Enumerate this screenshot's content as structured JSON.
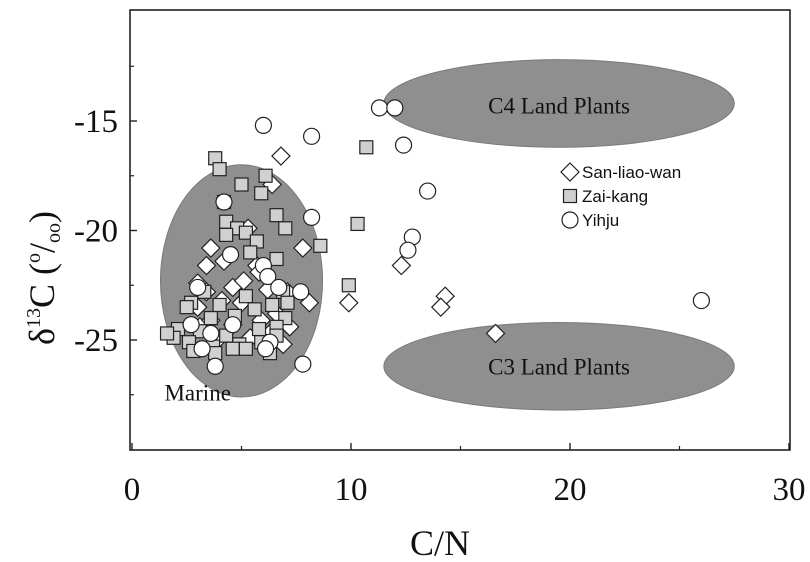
{
  "chart_data": {
    "type": "scatter",
    "title": "",
    "xlabel": "C/N",
    "ylabel": {
      "delta": "δ",
      "sup": "13",
      "main": "C (",
      "permil_sup": "o",
      "permil_sub": "oo",
      "close": ")"
    },
    "xlim": [
      0,
      30
    ],
    "ylim": [
      -30,
      -10
    ],
    "x_ticks": [
      0,
      10,
      20,
      30
    ],
    "y_ticks": [
      -15,
      -20,
      -25
    ],
    "x_tick_labels": [
      "0",
      "10",
      "20",
      "30"
    ],
    "y_tick_labels": [
      "-15",
      "-20",
      "-25"
    ],
    "grid": false,
    "legend_position": "right",
    "colors": {
      "region_fill": "#8f8f8f",
      "square_fill": "#d0d0d0",
      "marker_stroke": "#222222",
      "marker_fill": "#ffffff"
    },
    "regions": [
      {
        "label": "C4 Land Plants",
        "cx": 19.5,
        "cy": -14.2,
        "rx": 8.0,
        "ry": 2.0,
        "label_x": 19.5,
        "label_y": -14.3
      },
      {
        "label": "C3 Land Plants",
        "cx": 19.5,
        "cy": -26.2,
        "rx": 8.0,
        "ry": 2.0,
        "label_x": 19.5,
        "label_y": -26.2
      },
      {
        "label": "Marine",
        "cx": 5.0,
        "cy": -22.3,
        "rx": 3.7,
        "ry": 5.3,
        "label_x": 3.0,
        "label_y": -27.4
      }
    ],
    "series": [
      {
        "name": "San-liao-wan",
        "marker": "diamond",
        "points": [
          [
            6.8,
            -16.6
          ],
          [
            6.4,
            -17.9
          ],
          [
            5.3,
            -19.9
          ],
          [
            3.6,
            -20.8
          ],
          [
            4.2,
            -21.4
          ],
          [
            3.4,
            -21.6
          ],
          [
            5.7,
            -21.6
          ],
          [
            5.8,
            -21.9
          ],
          [
            7.8,
            -20.8
          ],
          [
            3.0,
            -22.4
          ],
          [
            3.4,
            -22.8
          ],
          [
            4.6,
            -22.6
          ],
          [
            5.1,
            -22.3
          ],
          [
            6.2,
            -22.7
          ],
          [
            7.1,
            -22.8
          ],
          [
            3.0,
            -23.5
          ],
          [
            4.1,
            -23.2
          ],
          [
            5.0,
            -23.3
          ],
          [
            6.6,
            -23.8
          ],
          [
            8.1,
            -23.3
          ],
          [
            3.1,
            -24.4
          ],
          [
            3.6,
            -24.1
          ],
          [
            4.6,
            -24.3
          ],
          [
            5.9,
            -24.1
          ],
          [
            6.4,
            -24.6
          ],
          [
            3.9,
            -25.0
          ],
          [
            5.2,
            -25.1
          ],
          [
            7.2,
            -24.4
          ],
          [
            5.4,
            -24.9
          ],
          [
            6.9,
            -25.2
          ],
          [
            9.9,
            -23.3
          ],
          [
            12.3,
            -21.6
          ],
          [
            14.3,
            -23.0
          ],
          [
            14.1,
            -23.5
          ],
          [
            16.6,
            -24.7
          ]
        ]
      },
      {
        "name": "Zai-kang",
        "marker": "square",
        "points": [
          [
            3.8,
            -16.7
          ],
          [
            4.0,
            -17.2
          ],
          [
            6.1,
            -17.5
          ],
          [
            5.0,
            -17.9
          ],
          [
            4.2,
            -18.7
          ],
          [
            5.9,
            -18.3
          ],
          [
            4.3,
            -19.6
          ],
          [
            4.8,
            -19.9
          ],
          [
            6.6,
            -19.3
          ],
          [
            4.3,
            -20.2
          ],
          [
            5.2,
            -20.1
          ],
          [
            5.7,
            -20.5
          ],
          [
            7.0,
            -19.9
          ],
          [
            8.6,
            -20.7
          ],
          [
            5.4,
            -21.0
          ],
          [
            6.6,
            -21.3
          ],
          [
            3.3,
            -22.8
          ],
          [
            2.7,
            -23.3
          ],
          [
            5.2,
            -23.0
          ],
          [
            6.9,
            -22.8
          ],
          [
            2.5,
            -23.5
          ],
          [
            4.0,
            -23.4
          ],
          [
            6.4,
            -23.4
          ],
          [
            7.1,
            -23.3
          ],
          [
            4.7,
            -23.9
          ],
          [
            5.6,
            -23.6
          ],
          [
            7.0,
            -24.0
          ],
          [
            3.6,
            -24.0
          ],
          [
            2.1,
            -24.5
          ],
          [
            3.1,
            -24.6
          ],
          [
            4.3,
            -24.8
          ],
          [
            5.8,
            -24.5
          ],
          [
            6.6,
            -24.4
          ],
          [
            1.9,
            -24.9
          ],
          [
            2.6,
            -25.1
          ],
          [
            3.7,
            -25.3
          ],
          [
            4.9,
            -25.2
          ],
          [
            5.9,
            -25.1
          ],
          [
            6.6,
            -24.8
          ],
          [
            1.6,
            -24.7
          ],
          [
            2.8,
            -25.5
          ],
          [
            4.6,
            -25.4
          ],
          [
            5.2,
            -25.4
          ],
          [
            6.3,
            -25.6
          ],
          [
            3.8,
            -25.6
          ],
          [
            9.9,
            -22.5
          ],
          [
            10.3,
            -19.7
          ],
          [
            10.7,
            -16.2
          ]
        ]
      },
      {
        "name": "Yihju",
        "marker": "circle",
        "points": [
          [
            6.0,
            -15.2
          ],
          [
            8.2,
            -15.7
          ],
          [
            4.2,
            -18.7
          ],
          [
            8.2,
            -19.4
          ],
          [
            4.5,
            -21.1
          ],
          [
            6.0,
            -21.6
          ],
          [
            6.2,
            -22.1
          ],
          [
            6.7,
            -22.6
          ],
          [
            3.0,
            -22.6
          ],
          [
            2.7,
            -24.3
          ],
          [
            3.6,
            -24.7
          ],
          [
            4.6,
            -24.3
          ],
          [
            6.3,
            -25.1
          ],
          [
            7.7,
            -22.8
          ],
          [
            3.2,
            -25.4
          ],
          [
            3.8,
            -26.2
          ],
          [
            6.1,
            -25.4
          ],
          [
            7.8,
            -26.1
          ],
          [
            11.3,
            -14.4
          ],
          [
            12.0,
            -14.4
          ],
          [
            12.4,
            -16.1
          ],
          [
            13.5,
            -18.2
          ],
          [
            12.8,
            -20.3
          ],
          [
            12.6,
            -20.9
          ],
          [
            26.0,
            -23.2
          ]
        ]
      }
    ]
  }
}
